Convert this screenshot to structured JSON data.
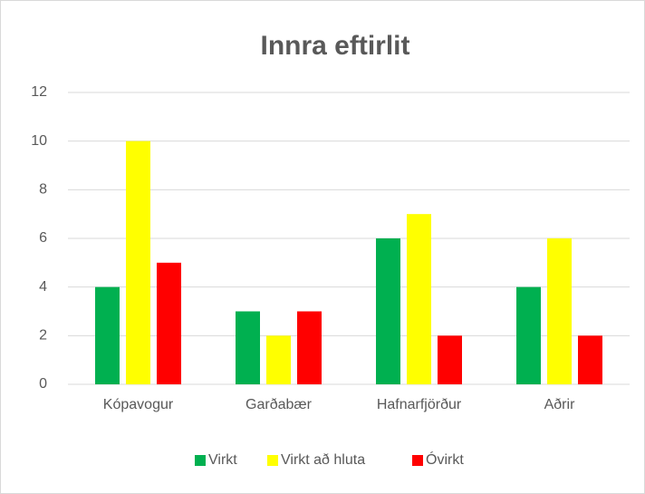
{
  "chart_data": {
    "type": "bar",
    "title": "Innra eftirlit",
    "categories": [
      "Kópavogur",
      "Garðabær",
      "Hafnarfjörður",
      "Aðrir"
    ],
    "series": [
      {
        "name": "Virkt",
        "color": "#00b050",
        "values": [
          4,
          3,
          6,
          4
        ]
      },
      {
        "name": "Virkt að hluta",
        "color": "#ffff00",
        "values": [
          10,
          2,
          7,
          6
        ]
      },
      {
        "name": "Óvirkt",
        "color": "#ff0000",
        "values": [
          5,
          3,
          2,
          2
        ]
      }
    ],
    "ylim": [
      0,
      12
    ],
    "yticks": [
      0,
      2,
      4,
      6,
      8,
      10,
      12
    ],
    "grid": true,
    "legend": "bottom"
  }
}
